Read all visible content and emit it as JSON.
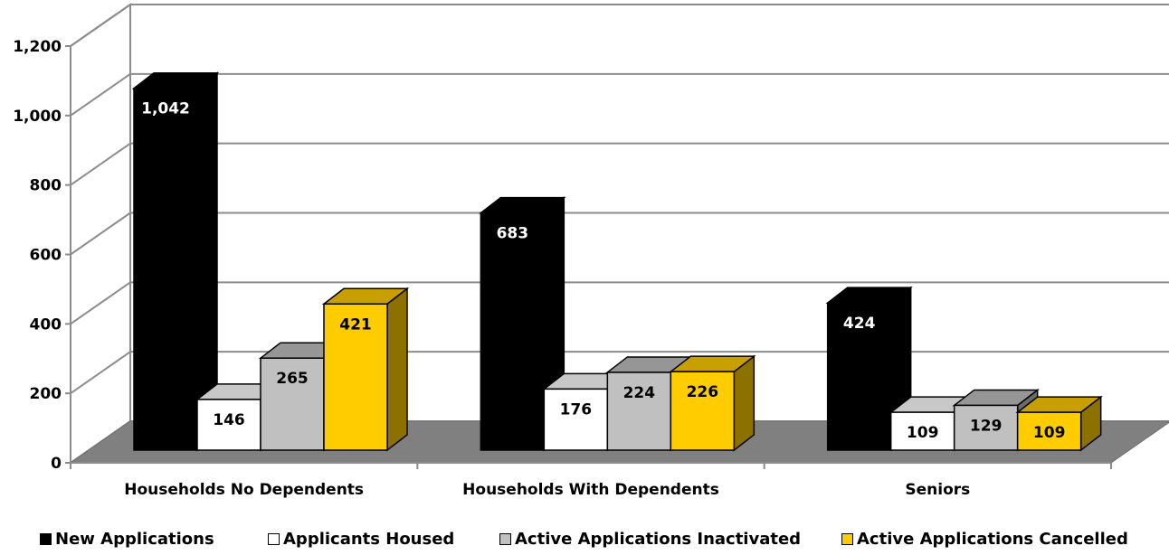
{
  "chart_data": {
    "type": "bar",
    "categories": [
      "Households No Dependents",
      "Households With Dependents",
      "Seniors"
    ],
    "series": [
      {
        "name": "New Applications",
        "values": [
          1042,
          683,
          424
        ],
        "labels": [
          "1,042",
          "683",
          "424"
        ],
        "color": "#000000",
        "label_color": "#ffffff",
        "label_weight": "normal"
      },
      {
        "name": "Applicants Housed",
        "values": [
          146,
          176,
          109
        ],
        "labels": [
          "146",
          "176",
          "109"
        ],
        "color": "#ffffff",
        "label_color": "#000000",
        "label_weight": "bold"
      },
      {
        "name": "Active Applications Inactivated",
        "values": [
          265,
          224,
          129
        ],
        "labels": [
          "265",
          "224",
          "129"
        ],
        "color": "#c0c0c0",
        "label_color": "#000000",
        "label_weight": "bold"
      },
      {
        "name": "Active Applications Cancelled",
        "values": [
          421,
          226,
          109
        ],
        "labels": [
          "421",
          "226",
          "109"
        ],
        "color": "#ffcc00",
        "label_color": "#000000",
        "label_weight": "bold"
      }
    ],
    "y_ticks": [
      "0",
      "200",
      "400",
      "600",
      "800",
      "1,000",
      "1,200"
    ],
    "ylim": [
      0,
      1200
    ],
    "grid": true,
    "legend_position": "bottom",
    "projection": "3d-columns"
  }
}
